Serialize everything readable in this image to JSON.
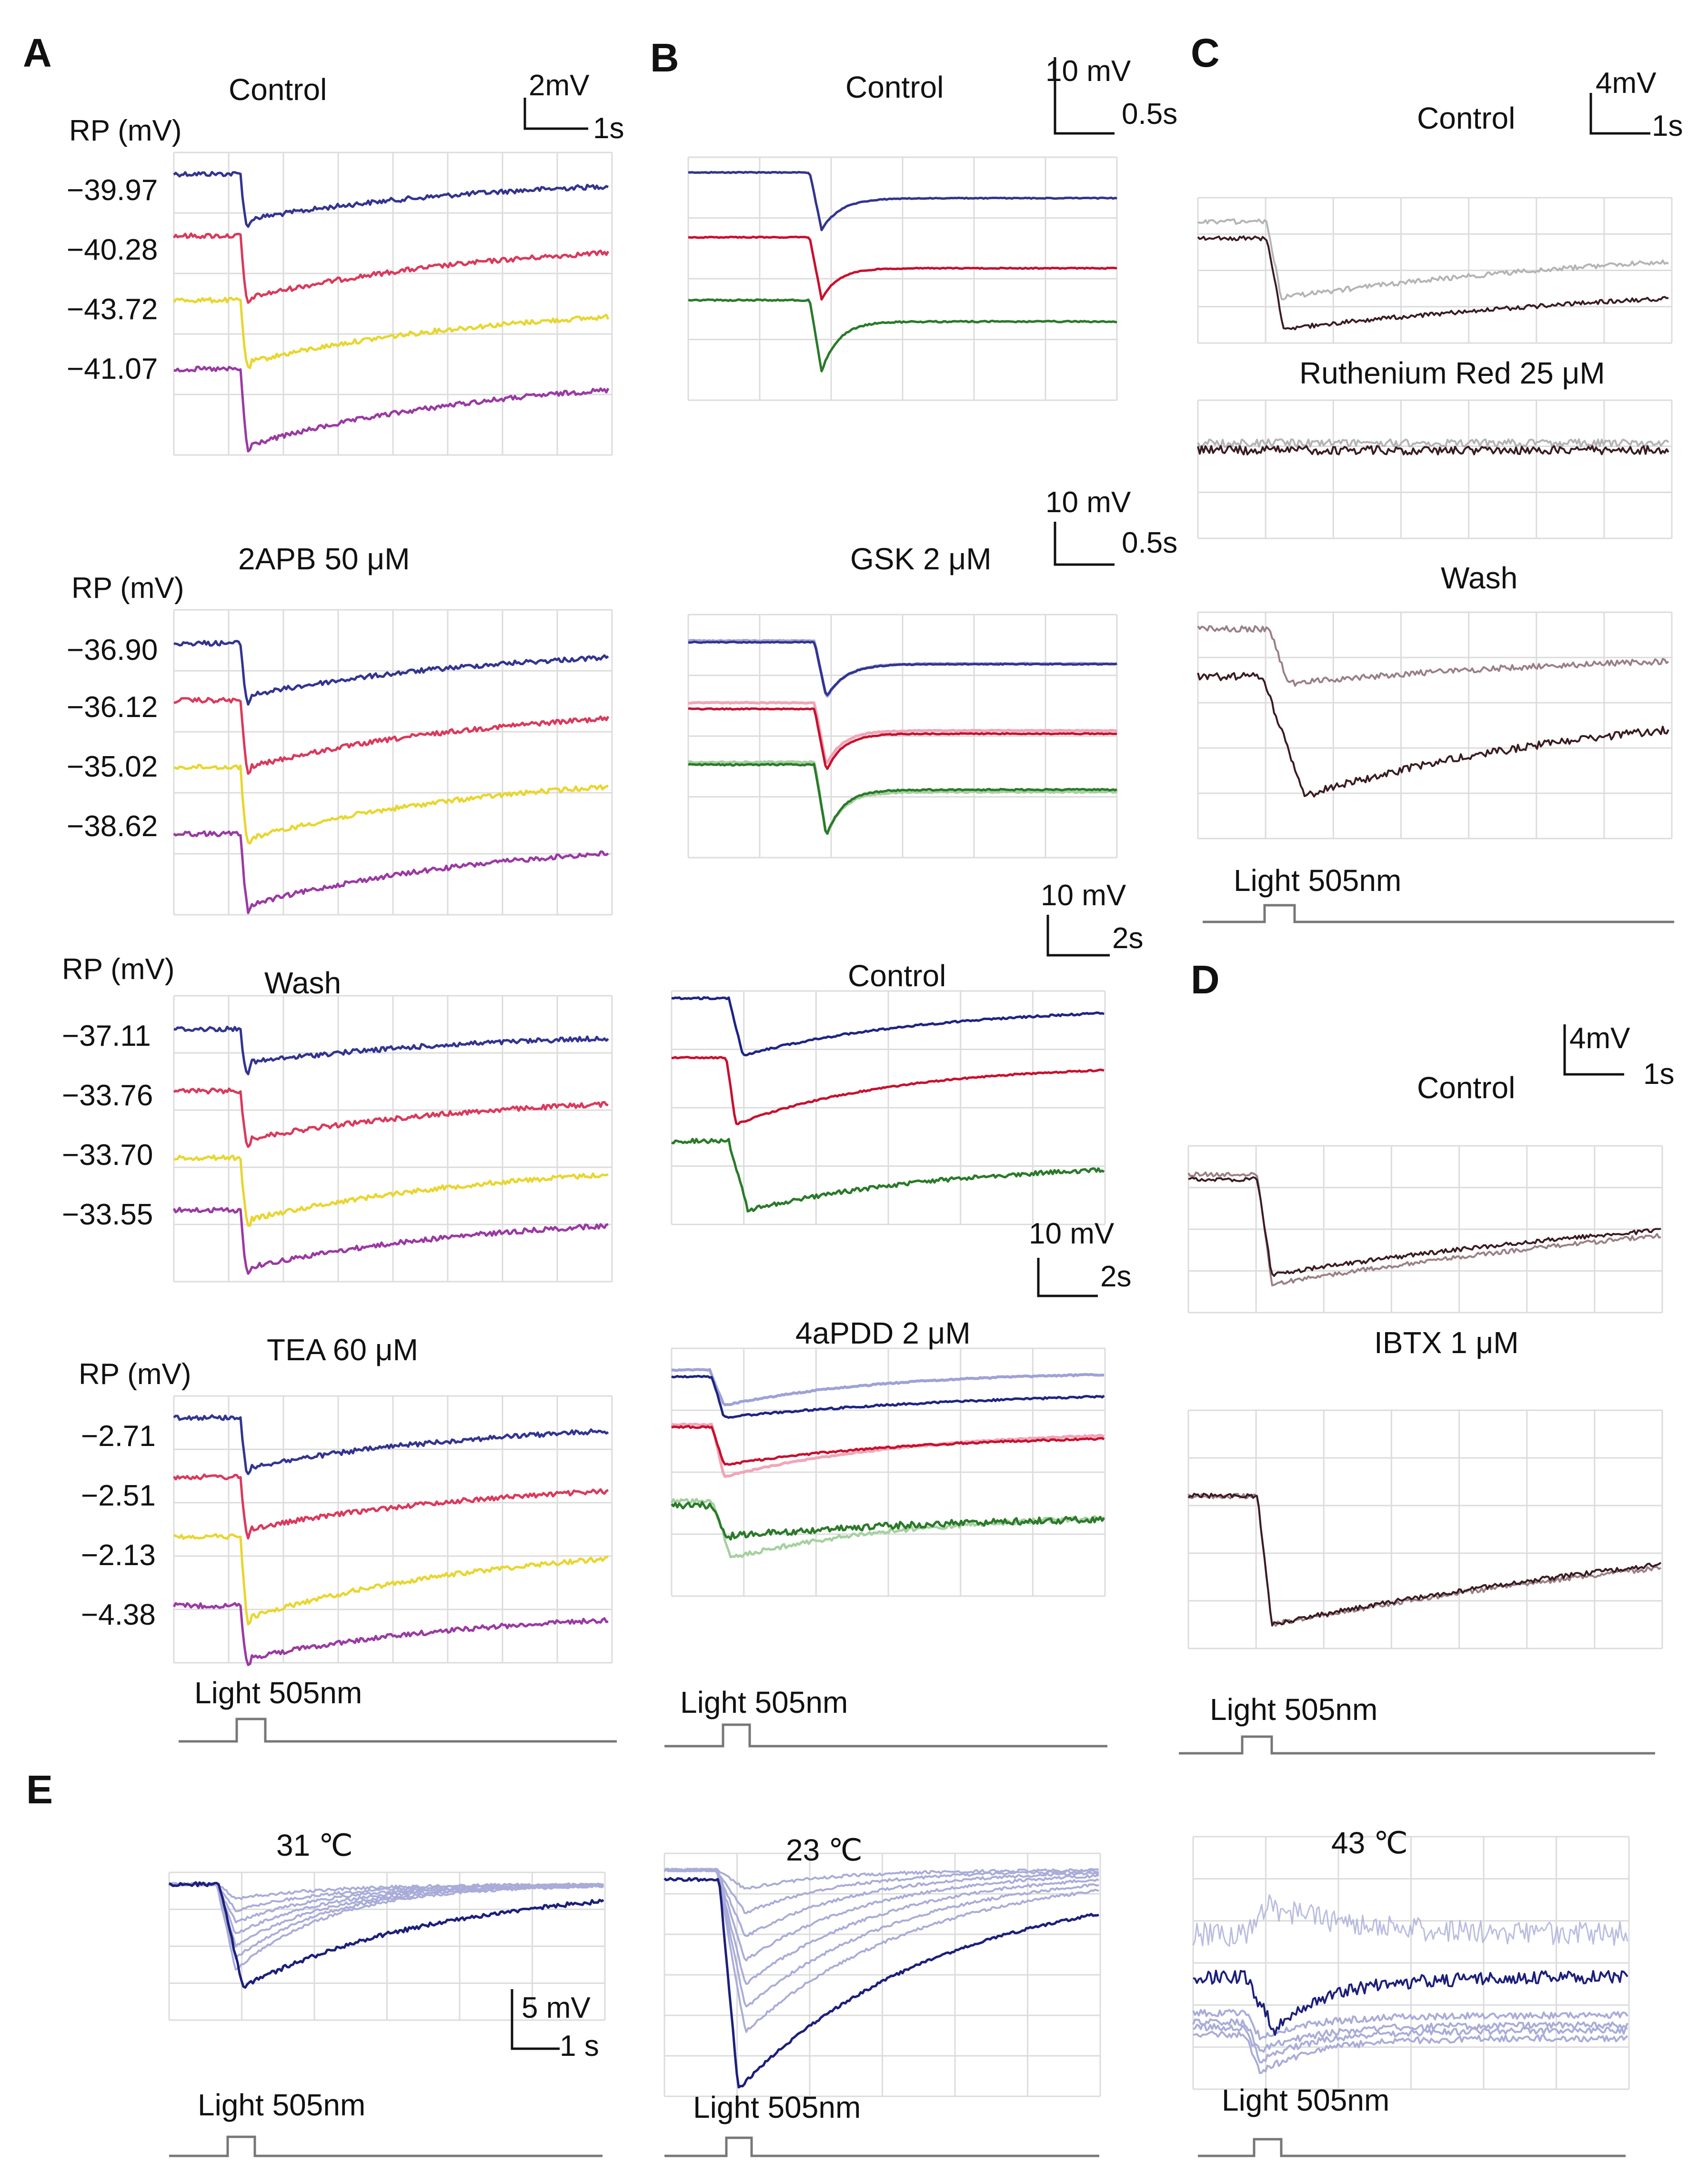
{
  "figure": {
    "panel_labels": {
      "A": "A",
      "B": "B",
      "C": "C",
      "D": "D",
      "E": "E"
    },
    "light_label": "Light 505nm",
    "colors": {
      "blue": "#33348f",
      "red": "#d93a5c",
      "yellow": "#e8d630",
      "purple": "#9a3aa3",
      "dark_blue": "#1f2482",
      "crimson": "#c8102e",
      "green": "#2a7a2a",
      "light_blue": "#9ea2d6",
      "pink": "#f0a6b8",
      "light_green": "#a6d0a0",
      "dark_brown": "#3a1c22",
      "mauve": "#9a7f86",
      "grey_trace": "#b4b4b4",
      "periwinkle": "#a9acd8",
      "navy": "#1c1f7a",
      "grid": "#dcdcdc",
      "stimulus": "#777777"
    }
  },
  "panel_a": {
    "scale": {
      "v": "2mV",
      "t": "1s"
    },
    "blocks": [
      {
        "condition": "Control",
        "rp_header": "RP (mV)",
        "rp_values": [
          "−39.97",
          "−40.28",
          "−43.72",
          "−41.07"
        ]
      },
      {
        "condition": "2APB 50 μM",
        "rp_header": "RP (mV)",
        "rp_values": [
          "−36.90",
          "−36.12",
          "−35.02",
          "−38.62"
        ]
      },
      {
        "condition": "Wash",
        "rp_header": "RP (mV)",
        "rp_values": [
          "−37.11",
          "−33.76",
          "−33.70",
          "−33.55"
        ]
      },
      {
        "condition": "TEA 60 μM",
        "rp_header": "RP (mV)",
        "rp_values": [
          "−2.71",
          "−2.51",
          "−2.13",
          "−4.38"
        ]
      }
    ]
  },
  "panel_b": {
    "blocks": [
      {
        "condition": "Control",
        "scale_v": "10 mV",
        "scale_t": "0.5s"
      },
      {
        "condition": "GSK 2 μM",
        "scale_v": "10 mV",
        "scale_t": "0.5s"
      },
      {
        "condition": "Control",
        "scale_v": "10 mV",
        "scale_t": "2s"
      },
      {
        "condition": "4aPDD 2 μM",
        "scale_v": "10 mV",
        "scale_t": "2s"
      }
    ]
  },
  "panel_c": {
    "scale": {
      "v": "4mV",
      "t": "1s"
    },
    "conditions": [
      "Control",
      "Ruthenium Red 25 μM",
      "Wash"
    ]
  },
  "panel_d": {
    "scale": {
      "v": "4mV",
      "t": "1s"
    },
    "conditions": [
      "Control",
      "IBTX  1 μM"
    ]
  },
  "panel_e": {
    "scale": {
      "v": "5 mV",
      "t": "1 s"
    },
    "temperatures": [
      "31 ℃",
      "23 ℃",
      "43 ℃"
    ]
  }
}
